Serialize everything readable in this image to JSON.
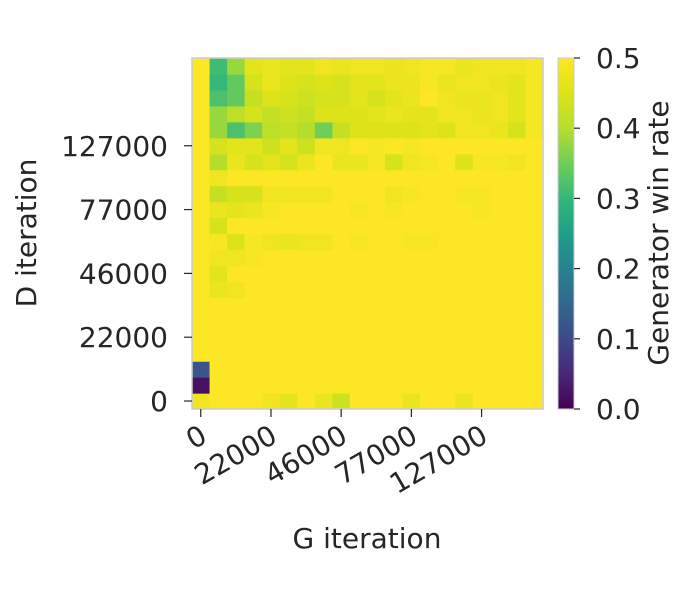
{
  "chart_data": {
    "type": "heatmap",
    "title": "",
    "xlabel": "G iteration",
    "ylabel": "D iteration",
    "colorbar_label": "Generator win rate",
    "colormap": "viridis",
    "vmin": 0.0,
    "vmax": 0.5,
    "x_tick_labels": [
      "0",
      "22000",
      "46000",
      "77000",
      "127000"
    ],
    "y_tick_labels": [
      "0",
      "22000",
      "46000",
      "77000",
      "127000"
    ],
    "colorbar_tick_labels": [
      "0.0",
      "0.1",
      "0.2",
      "0.3",
      "0.4",
      "0.5"
    ],
    "grid": false,
    "rows_bottom_to_top": [
      [
        0.48,
        0.5,
        0.5,
        0.5,
        0.48,
        0.46,
        0.5,
        0.47,
        0.43,
        0.5,
        0.5,
        0.5,
        0.47,
        0.5,
        0.5,
        0.47,
        0.5,
        0.5,
        0.5,
        0.5
      ],
      [
        0.02,
        0.5,
        0.5,
        0.5,
        0.5,
        0.5,
        0.5,
        0.5,
        0.5,
        0.5,
        0.5,
        0.5,
        0.5,
        0.5,
        0.5,
        0.5,
        0.5,
        0.5,
        0.5,
        0.5
      ],
      [
        0.12,
        0.5,
        0.5,
        0.5,
        0.5,
        0.5,
        0.5,
        0.5,
        0.5,
        0.5,
        0.5,
        0.5,
        0.5,
        0.5,
        0.5,
        0.5,
        0.5,
        0.5,
        0.5,
        0.5
      ],
      [
        0.5,
        0.5,
        0.5,
        0.5,
        0.5,
        0.5,
        0.5,
        0.5,
        0.5,
        0.5,
        0.5,
        0.5,
        0.5,
        0.5,
        0.5,
        0.5,
        0.5,
        0.5,
        0.5,
        0.5
      ],
      [
        0.5,
        0.5,
        0.5,
        0.5,
        0.5,
        0.5,
        0.5,
        0.5,
        0.5,
        0.5,
        0.5,
        0.5,
        0.5,
        0.5,
        0.5,
        0.5,
        0.5,
        0.5,
        0.5,
        0.5
      ],
      [
        0.5,
        0.5,
        0.5,
        0.5,
        0.5,
        0.5,
        0.5,
        0.5,
        0.5,
        0.5,
        0.5,
        0.5,
        0.5,
        0.5,
        0.5,
        0.5,
        0.5,
        0.5,
        0.5,
        0.5
      ],
      [
        0.5,
        0.5,
        0.5,
        0.5,
        0.5,
        0.5,
        0.5,
        0.5,
        0.5,
        0.5,
        0.5,
        0.5,
        0.5,
        0.5,
        0.5,
        0.5,
        0.5,
        0.5,
        0.5,
        0.5
      ],
      [
        0.5,
        0.47,
        0.48,
        0.5,
        0.5,
        0.5,
        0.5,
        0.5,
        0.5,
        0.5,
        0.5,
        0.5,
        0.5,
        0.5,
        0.5,
        0.5,
        0.5,
        0.5,
        0.5,
        0.5
      ],
      [
        0.5,
        0.46,
        0.5,
        0.5,
        0.5,
        0.5,
        0.5,
        0.5,
        0.5,
        0.5,
        0.5,
        0.5,
        0.5,
        0.5,
        0.5,
        0.5,
        0.5,
        0.5,
        0.5,
        0.5
      ],
      [
        0.5,
        0.48,
        0.48,
        0.49,
        0.5,
        0.5,
        0.5,
        0.5,
        0.5,
        0.5,
        0.5,
        0.5,
        0.5,
        0.5,
        0.5,
        0.5,
        0.5,
        0.5,
        0.5,
        0.5
      ],
      [
        0.5,
        0.49,
        0.45,
        0.49,
        0.48,
        0.47,
        0.48,
        0.48,
        0.5,
        0.49,
        0.5,
        0.5,
        0.49,
        0.49,
        0.5,
        0.5,
        0.5,
        0.5,
        0.5,
        0.5
      ],
      [
        0.5,
        0.44,
        0.5,
        0.5,
        0.5,
        0.5,
        0.5,
        0.5,
        0.5,
        0.5,
        0.5,
        0.5,
        0.5,
        0.5,
        0.5,
        0.5,
        0.5,
        0.5,
        0.5,
        0.5
      ],
      [
        0.5,
        0.47,
        0.46,
        0.47,
        0.49,
        0.5,
        0.5,
        0.5,
        0.5,
        0.49,
        0.5,
        0.49,
        0.5,
        0.5,
        0.5,
        0.5,
        0.49,
        0.5,
        0.5,
        0.5
      ],
      [
        0.5,
        0.42,
        0.44,
        0.44,
        0.48,
        0.48,
        0.48,
        0.48,
        0.5,
        0.5,
        0.5,
        0.48,
        0.49,
        0.5,
        0.5,
        0.49,
        0.49,
        0.5,
        0.5,
        0.5
      ],
      [
        0.5,
        0.48,
        0.5,
        0.5,
        0.5,
        0.5,
        0.5,
        0.5,
        0.5,
        0.5,
        0.5,
        0.5,
        0.5,
        0.5,
        0.5,
        0.5,
        0.5,
        0.5,
        0.5,
        0.5
      ],
      [
        0.5,
        0.4,
        0.47,
        0.44,
        0.46,
        0.44,
        0.47,
        0.5,
        0.47,
        0.47,
        0.49,
        0.44,
        0.48,
        0.49,
        0.5,
        0.45,
        0.49,
        0.49,
        0.48,
        0.5
      ],
      [
        0.5,
        0.44,
        0.46,
        0.46,
        0.43,
        0.46,
        0.43,
        0.48,
        0.48,
        0.5,
        0.49,
        0.5,
        0.49,
        0.5,
        0.5,
        0.5,
        0.5,
        0.5,
        0.5,
        0.5
      ],
      [
        0.5,
        0.38,
        0.32,
        0.36,
        0.41,
        0.42,
        0.4,
        0.35,
        0.42,
        0.45,
        0.45,
        0.45,
        0.45,
        0.46,
        0.45,
        0.48,
        0.48,
        0.47,
        0.44,
        0.49
      ],
      [
        0.5,
        0.38,
        0.41,
        0.44,
        0.42,
        0.43,
        0.42,
        0.45,
        0.45,
        0.45,
        0.46,
        0.47,
        0.46,
        0.46,
        0.48,
        0.48,
        0.47,
        0.48,
        0.46,
        0.49
      ],
      [
        0.5,
        0.32,
        0.34,
        0.42,
        0.45,
        0.44,
        0.43,
        0.44,
        0.44,
        0.46,
        0.44,
        0.46,
        0.47,
        0.5,
        0.48,
        0.47,
        0.47,
        0.48,
        0.46,
        0.49
      ],
      [
        0.5,
        0.3,
        0.34,
        0.44,
        0.47,
        0.45,
        0.44,
        0.45,
        0.44,
        0.46,
        0.46,
        0.47,
        0.47,
        0.49,
        0.47,
        0.48,
        0.48,
        0.47,
        0.46,
        0.49
      ],
      [
        0.5,
        0.31,
        0.38,
        0.46,
        0.47,
        0.46,
        0.46,
        0.48,
        0.47,
        0.48,
        0.48,
        0.47,
        0.48,
        0.49,
        0.49,
        0.47,
        0.48,
        0.48,
        0.48,
        0.49
      ]
    ]
  }
}
